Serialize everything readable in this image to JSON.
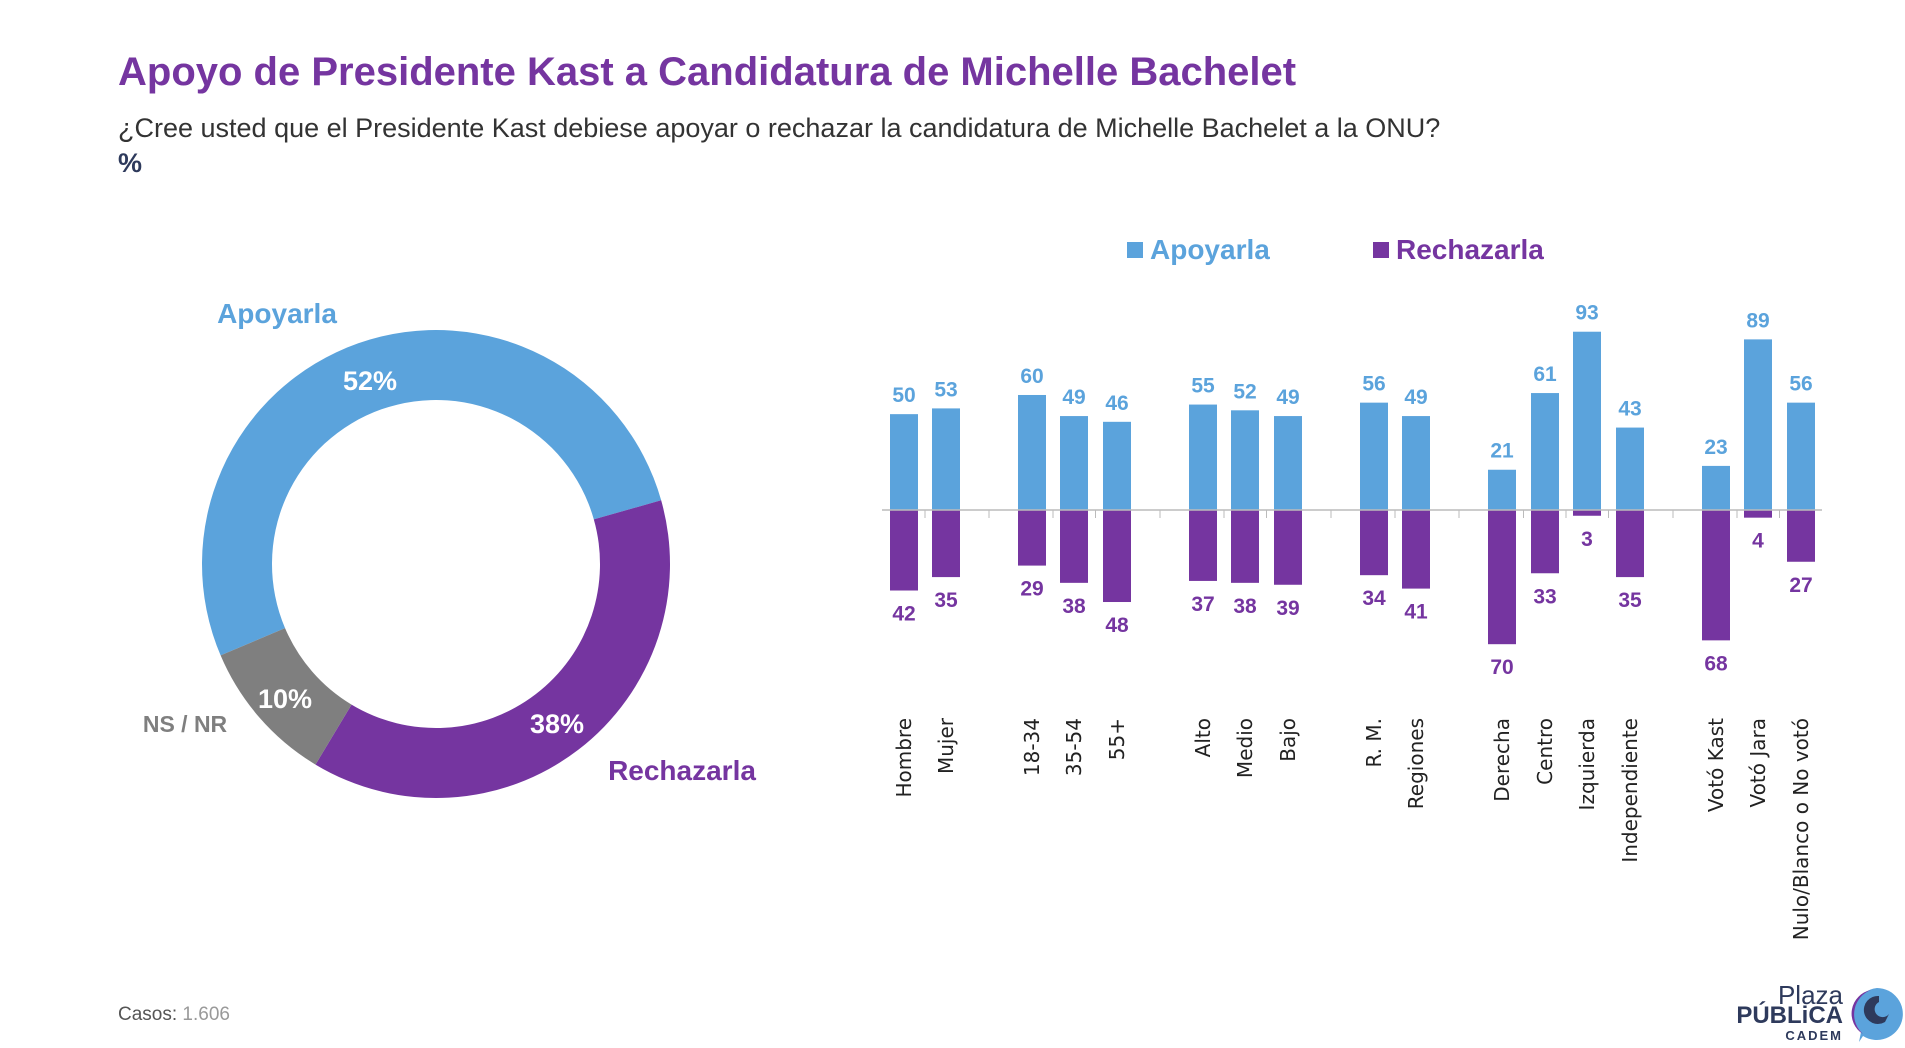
{
  "header": {
    "title": "Apoyo de Presidente Kast a Candidatura de Michelle Bachelet",
    "subtitle": "¿Cree usted que el Presidente Kast debiese apoyar o rechazar la candidatura de Michelle Bachelet a la ONU?",
    "unit": "%"
  },
  "footer": {
    "casos_label": "Casos:",
    "casos_value": "1.606"
  },
  "logo": {
    "line1": "Plaza",
    "line2": "PÚBLiCA",
    "line3": "CADEM"
  },
  "colors": {
    "apoyarla": "#5ba3dc",
    "rechazarla": "#7535a0",
    "nsnr": "#7f7f7f"
  },
  "chart_data": [
    {
      "type": "pie",
      "donut": true,
      "slices": [
        {
          "label": "Apoyarla",
          "value": 52,
          "value_label": "52%",
          "color": "#5ba3dc"
        },
        {
          "label": "Rechazarla",
          "value": 38,
          "value_label": "38%",
          "color": "#7535a0"
        },
        {
          "label": "NS / NR",
          "value": 10,
          "value_label": "10%",
          "color": "#7f7f7f"
        }
      ]
    },
    {
      "type": "bar",
      "diverging": true,
      "legend": {
        "placement": "top",
        "entries": [
          "Apoyarla",
          "Rechazarla"
        ]
      },
      "categories": [
        "Hombre",
        "Mujer",
        "18-34",
        "35-54",
        "55+",
        "Alto",
        "Medio",
        "Bajo",
        "R. M.",
        "Regiones",
        "Derecha",
        "Centro",
        "Izquierda",
        "Independiente",
        "Votó Kast",
        "Votó Jara",
        "Nulo/Blanco o No votó"
      ],
      "groups": [
        [
          0,
          1
        ],
        [
          2,
          3,
          4
        ],
        [
          5,
          6,
          7
        ],
        [
          8,
          9
        ],
        [
          10,
          11,
          12,
          13
        ],
        [
          14,
          15,
          16
        ]
      ],
      "series": [
        {
          "name": "Apoyarla",
          "color": "#5ba3dc",
          "values": [
            50,
            53,
            60,
            49,
            46,
            55,
            52,
            49,
            56,
            49,
            21,
            61,
            93,
            43,
            23,
            89,
            56
          ]
        },
        {
          "name": "Rechazarla",
          "color": "#7535a0",
          "values": [
            42,
            35,
            29,
            38,
            48,
            37,
            38,
            39,
            34,
            41,
            70,
            33,
            3,
            35,
            68,
            4,
            27
          ]
        }
      ]
    }
  ]
}
